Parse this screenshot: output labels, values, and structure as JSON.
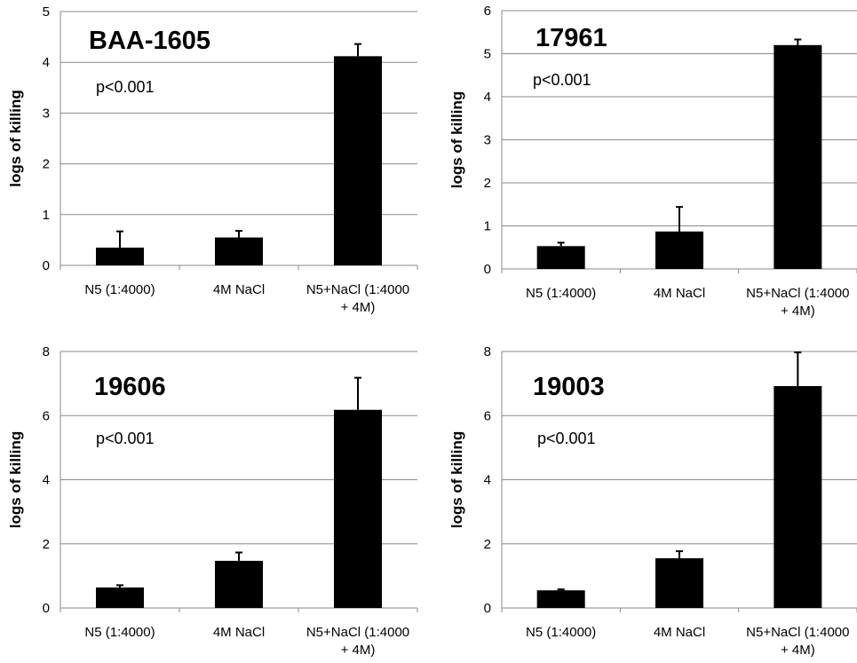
{
  "chart_data": [
    {
      "type": "bar",
      "title": "BAA-1605",
      "annotation": "p<0.001",
      "ylabel": "logs of killing",
      "xlabel": "",
      "ylim": [
        0,
        5
      ],
      "ytick_step": 1,
      "ytick_labels": [
        "0",
        "1",
        "2",
        "3",
        "4",
        "5"
      ],
      "categories": [
        [
          "N5 (1:4000)"
        ],
        [
          "4M NaCl"
        ],
        [
          "N5+NaCl (1:4000",
          "+ 4M)"
        ]
      ],
      "values": [
        0.35,
        0.55,
        4.12
      ],
      "errors": [
        0.32,
        0.13,
        0.24
      ],
      "grid": true,
      "bar_color": "#000000"
    },
    {
      "type": "bar",
      "title": "17961",
      "annotation": "p<0.001",
      "ylabel": "logs of killing",
      "xlabel": "",
      "ylim": [
        0,
        6
      ],
      "ytick_step": 1,
      "ytick_labels": [
        "0",
        "1",
        "2",
        "3",
        "4",
        "5",
        "6"
      ],
      "categories": [
        [
          "N5 (1:4000)"
        ],
        [
          "4M NaCl"
        ],
        [
          "N5+NaCl (1:4000",
          "+ 4M)"
        ]
      ],
      "values": [
        0.53,
        0.87,
        5.2
      ],
      "errors": [
        0.08,
        0.57,
        0.13
      ],
      "grid": true,
      "bar_color": "#000000"
    },
    {
      "type": "bar",
      "title": "19606",
      "annotation": "p<0.001",
      "ylabel": "logs of killing",
      "xlabel": "",
      "ylim": [
        0,
        8
      ],
      "ytick_step": 2,
      "ytick_labels": [
        "0",
        "2",
        "4",
        "6",
        "8"
      ],
      "categories": [
        [
          "N5 (1:4000)"
        ],
        [
          "4M NaCl"
        ],
        [
          "N5+NaCl (1:4000",
          "+ 4M)"
        ]
      ],
      "values": [
        0.64,
        1.47,
        6.18
      ],
      "errors": [
        0.07,
        0.26,
        1.0
      ],
      "grid": true,
      "bar_color": "#000000"
    },
    {
      "type": "bar",
      "title": "19003",
      "annotation": "p<0.001",
      "ylabel": "logs of killing",
      "xlabel": "",
      "ylim": [
        0,
        8
      ],
      "ytick_step": 2,
      "ytick_labels": [
        "0",
        "2",
        "4",
        "6",
        "8"
      ],
      "categories": [
        [
          "N5 (1:4000)"
        ],
        [
          "4M NaCl"
        ],
        [
          "N5+NaCl (1:4000",
          "+ 4M)"
        ]
      ],
      "values": [
        0.55,
        1.55,
        6.92
      ],
      "errors": [
        0.03,
        0.22,
        1.05
      ],
      "grid": true,
      "bar_color": "#000000"
    }
  ]
}
